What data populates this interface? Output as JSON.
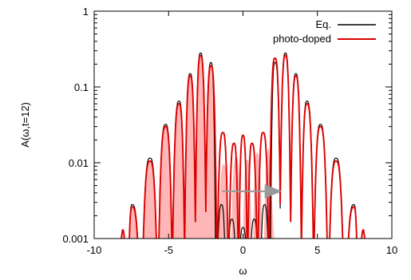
{
  "chart_data": {
    "type": "line",
    "xlabel": "ω",
    "ylabel": "A(ω,t=12)",
    "xlim": [
      -10,
      10
    ],
    "ylim": [
      0.001,
      1
    ],
    "y_scale": "log",
    "x_ticks": [
      -10,
      -5,
      0,
      5,
      10
    ],
    "x_tick_labels": [
      "-10",
      "-5",
      "0",
      "5",
      "10"
    ],
    "y_ticks": [
      0.001,
      0.01,
      0.1,
      1
    ],
    "y_tick_labels": [
      "0.001",
      "0.01",
      "0.1",
      "1"
    ],
    "legend_position": "top-right",
    "grid": false,
    "series": [
      {
        "name": "Eq.",
        "color": "#000000",
        "peaks": [
          {
            "x": -8.1,
            "y": 0.0013
          },
          {
            "x": -7.45,
            "y": 0.0028
          },
          {
            "x": -6.25,
            "y": 0.0115
          },
          {
            "x": -5.2,
            "y": 0.032
          },
          {
            "x": -4.3,
            "y": 0.065
          },
          {
            "x": -3.55,
            "y": 0.15
          },
          {
            "x": -2.85,
            "y": 0.28
          },
          {
            "x": -2.15,
            "y": 0.21
          },
          {
            "x": -1.45,
            "y": 0.0028
          },
          {
            "x": -0.75,
            "y": 0.0018
          },
          {
            "x": 0.0,
            "y": 0.0014
          },
          {
            "x": 0.75,
            "y": 0.0018
          },
          {
            "x": 1.45,
            "y": 0.0028
          },
          {
            "x": 2.15,
            "y": 0.21
          },
          {
            "x": 2.85,
            "y": 0.28
          },
          {
            "x": 3.55,
            "y": 0.15
          },
          {
            "x": 4.3,
            "y": 0.065
          },
          {
            "x": 5.2,
            "y": 0.032
          },
          {
            "x": 6.25,
            "y": 0.0115
          },
          {
            "x": 7.45,
            "y": 0.0028
          },
          {
            "x": 8.1,
            "y": 0.0013
          }
        ]
      },
      {
        "name": "photo-doped",
        "color": "#dd0000",
        "peaks": [
          {
            "x": -8.1,
            "y": 0.0013
          },
          {
            "x": -7.45,
            "y": 0.0026
          },
          {
            "x": -6.25,
            "y": 0.0105
          },
          {
            "x": -5.2,
            "y": 0.03
          },
          {
            "x": -4.3,
            "y": 0.06
          },
          {
            "x": -3.55,
            "y": 0.14
          },
          {
            "x": -2.85,
            "y": 0.26
          },
          {
            "x": -2.15,
            "y": 0.19
          },
          {
            "x": -1.35,
            "y": 0.025
          },
          {
            "x": -0.6,
            "y": 0.018
          },
          {
            "x": 0.0,
            "y": 0.023
          },
          {
            "x": 0.6,
            "y": 0.018
          },
          {
            "x": 1.35,
            "y": 0.025
          },
          {
            "x": 2.15,
            "y": 0.24
          },
          {
            "x": 2.85,
            "y": 0.26
          },
          {
            "x": 3.55,
            "y": 0.14
          },
          {
            "x": 4.3,
            "y": 0.06
          },
          {
            "x": 5.2,
            "y": 0.03
          },
          {
            "x": 6.25,
            "y": 0.0105
          },
          {
            "x": 7.45,
            "y": 0.0026
          },
          {
            "x": 8.1,
            "y": 0.0013
          }
        ]
      }
    ],
    "shaded_region": {
      "color": "#ffb6b6",
      "peaks": [
        {
          "x": -8.1,
          "y": 0.0013
        },
        {
          "x": -7.45,
          "y": 0.0026
        },
        {
          "x": -6.25,
          "y": 0.0105
        },
        {
          "x": -5.2,
          "y": 0.03
        },
        {
          "x": -4.3,
          "y": 0.06
        },
        {
          "x": -3.55,
          "y": 0.14
        },
        {
          "x": -2.85,
          "y": 0.26
        },
        {
          "x": -2.15,
          "y": 0.19
        },
        {
          "x": -1.3,
          "y": 0.0095
        },
        {
          "x": -0.45,
          "y": 0.012
        },
        {
          "x": 0.3,
          "y": 0.011
        },
        {
          "x": 0.95,
          "y": 0.0135
        },
        {
          "x": 1.75,
          "y": 0.0155
        }
      ],
      "x_end": 2.2
    },
    "arrow": {
      "x_start": -1.4,
      "x_end": 2.4,
      "y": 0.0042,
      "color": "#999999"
    }
  }
}
